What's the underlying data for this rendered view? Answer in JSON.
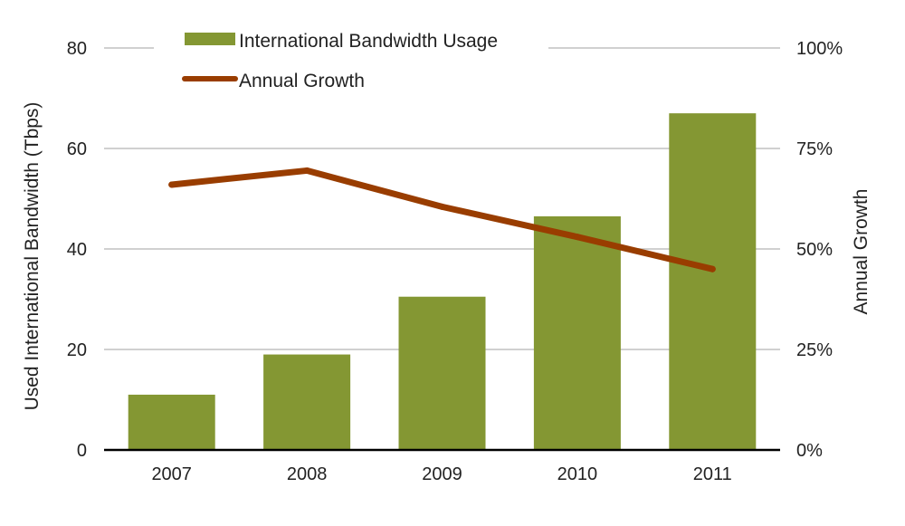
{
  "chart_data": {
    "type": "bar",
    "title": "",
    "categories": [
      "2007",
      "2008",
      "2009",
      "2010",
      "2011"
    ],
    "series": [
      {
        "name": "International Bandwidth Usage",
        "kind": "bar",
        "axis": "left",
        "color": "#849733",
        "values": [
          11,
          19,
          30.5,
          46.5,
          67
        ]
      },
      {
        "name": "Annual Growth",
        "kind": "line",
        "axis": "right",
        "color": "#993d00",
        "values": [
          66,
          69.5,
          60.5,
          53,
          45
        ]
      }
    ],
    "ylabel": "Used International Bandwidth (Tbps)",
    "ylim": [
      0,
      80
    ],
    "yticks": [
      "0",
      "20",
      "40",
      "60",
      "80"
    ],
    "yticks_values": [
      0,
      20,
      40,
      60,
      80
    ],
    "y2label": "Annual Growth",
    "y2lim": [
      0,
      100
    ],
    "y2ticks": [
      "0%",
      "25%",
      "50%",
      "75%",
      "100%"
    ],
    "y2ticks_values": [
      0,
      25,
      50,
      75,
      100
    ],
    "grid": true,
    "legend": "top-center"
  }
}
